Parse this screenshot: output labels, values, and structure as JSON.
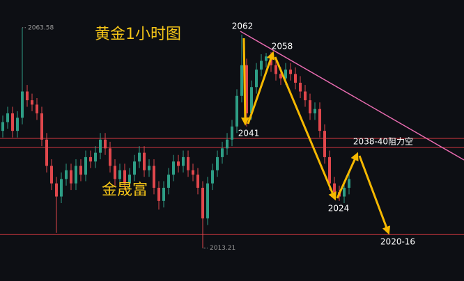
{
  "chart_data": {
    "type": "candlestick",
    "title": "黄金1小时图",
    "watermark": "金晟富",
    "open": [
      2040,
      2042,
      2044,
      2040,
      2043,
      2049,
      2047,
      2046,
      2044,
      2038,
      2032,
      2028,
      2025,
      2029,
      2031,
      2028,
      2032,
      2030,
      2034,
      2033,
      2035,
      2038,
      2036,
      2032,
      2029,
      2031,
      2028,
      2030,
      2033,
      2035,
      2031,
      2032,
      2027,
      2024,
      2027,
      2030,
      2033,
      2032,
      2034,
      2031,
      2030,
      2027,
      2020,
      2028,
      2031,
      2034,
      2036,
      2038,
      2041,
      2048,
      2055,
      2044,
      2050,
      2054,
      2056,
      2057,
      2055,
      2053,
      2052,
      2054,
      2053,
      2051,
      2049,
      2047,
      2044,
      2045,
      2040,
      2034,
      2028,
      2026,
      2025,
      2027
    ],
    "close": [
      2042,
      2044,
      2040,
      2043,
      2049,
      2047,
      2046,
      2044,
      2038,
      2032,
      2028,
      2025,
      2029,
      2031,
      2028,
      2032,
      2030,
      2034,
      2033,
      2035,
      2038,
      2036,
      2032,
      2029,
      2031,
      2028,
      2030,
      2033,
      2035,
      2031,
      2032,
      2027,
      2024,
      2027,
      2030,
      2033,
      2032,
      2034,
      2031,
      2030,
      2027,
      2020,
      2028,
      2031,
      2034,
      2036,
      2038,
      2041,
      2048,
      2055,
      2044,
      2050,
      2054,
      2056,
      2057,
      2055,
      2053,
      2052,
      2054,
      2053,
      2051,
      2049,
      2047,
      2044,
      2045,
      2040,
      2034,
      2028,
      2026,
      2025,
      2027,
      2029
    ],
    "high": [
      2043.5,
      2045.5,
      2045.5,
      2044.5,
      2063.58,
      2050.5,
      2048.5,
      2047.5,
      2045.5,
      2039.5,
      2033.5,
      2029.5,
      2030.5,
      2032.5,
      2032.5,
      2033.5,
      2033.5,
      2035.5,
      2035.5,
      2036.5,
      2039.5,
      2039.5,
      2037.5,
      2033.5,
      2032.5,
      2032.5,
      2031.5,
      2034.5,
      2036.5,
      2036.5,
      2033.5,
      2033.5,
      2028.5,
      2028.5,
      2031.5,
      2034.5,
      2034.5,
      2035.5,
      2035.5,
      2032.5,
      2031.5,
      2028.5,
      2029.5,
      2032.5,
      2035.5,
      2037.5,
      2039.5,
      2042.5,
      2049.5,
      2062,
      2056.5,
      2051.5,
      2055.5,
      2057.5,
      2057.8,
      2058,
      2056.5,
      2054.5,
      2055.5,
      2055.5,
      2054.5,
      2052.5,
      2050.5,
      2048.5,
      2046.5,
      2046.5,
      2041.5,
      2035.5,
      2029.5,
      2027.5,
      2028.5,
      2030.5
    ],
    "low": [
      2038.5,
      2040.5,
      2038.5,
      2038.5,
      2041.5,
      2045.5,
      2044.5,
      2042.5,
      2036.5,
      2030.5,
      2026.5,
      2016.7,
      2023.5,
      2027.5,
      2026.5,
      2026.5,
      2028.5,
      2028.5,
      2031.5,
      2031.5,
      2033.5,
      2034.5,
      2030.5,
      2027.5,
      2027.5,
      2026.5,
      2026.5,
      2028.5,
      2031.5,
      2029.5,
      2029.5,
      2025.5,
      2022,
      2022.5,
      2025.5,
      2028.5,
      2030.5,
      2030.5,
      2029.5,
      2028.5,
      2025.5,
      2013.21,
      2018.5,
      2026.5,
      2029.5,
      2032.5,
      2034.5,
      2036.5,
      2039.5,
      2046.5,
      2041,
      2042.5,
      2048.5,
      2052.5,
      2054.5,
      2053.5,
      2051.5,
      2050.5,
      2050.5,
      2051.5,
      2049.5,
      2047.5,
      2045.5,
      2042.5,
      2042.5,
      2038.5,
      2032.5,
      2026.5,
      2024.5,
      2024,
      2023.5,
      2025.5
    ],
    "up_color": "#2e9e86",
    "down_color": "#e0474c",
    "ylim": [
      2005.7,
      2069.9
    ],
    "levels": [
      2038.3,
      2036.2,
      2016.3
    ],
    "level_color": "#b8323a",
    "annotations": [
      {
        "text": "2062"
      },
      {
        "text": "2058"
      },
      {
        "text": "2041"
      },
      {
        "text": "2024"
      },
      {
        "text": "2038-40阻力空"
      },
      {
        "text": "2020-16"
      }
    ]
  }
}
